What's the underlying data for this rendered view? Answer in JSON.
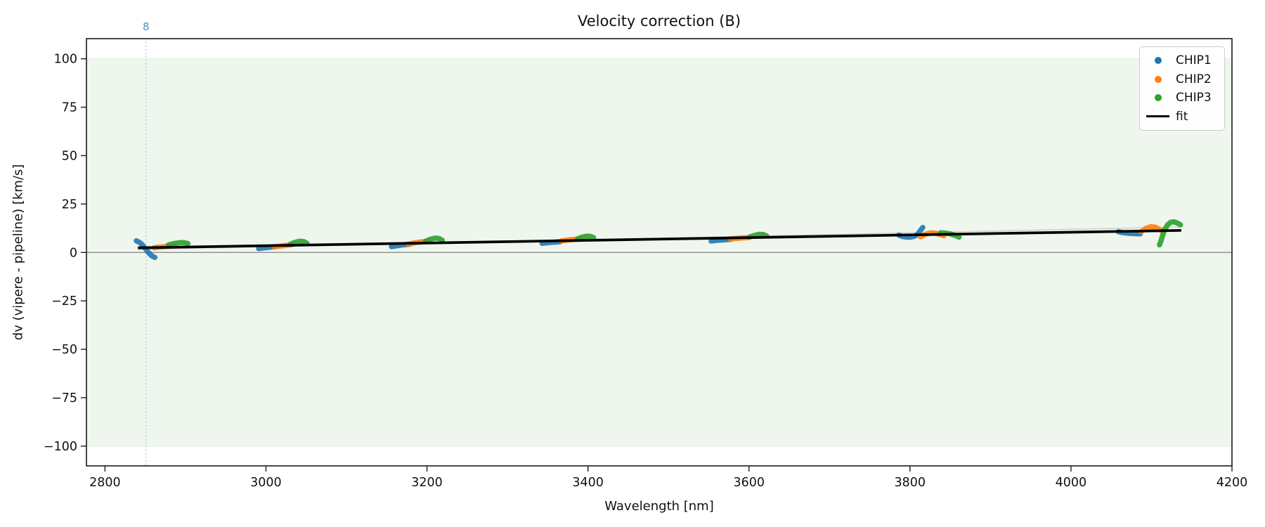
{
  "chart_data": {
    "type": "scatter",
    "title": "Velocity correction (B)",
    "xlabel": "Wavelength [nm]",
    "ylabel": "dv (vipere - pipeline) [km/s]",
    "xlim": [
      2777,
      4200
    ],
    "ylim": [
      -110.2,
      110.4
    ],
    "x_ticks": [
      2800,
      3000,
      3200,
      3400,
      3600,
      3800,
      4000,
      4200
    ],
    "y_ticks": [
      -100,
      -75,
      -50,
      -25,
      0,
      25,
      50,
      75,
      100
    ],
    "grid": false,
    "band": {
      "ymin": -100,
      "ymax": 100,
      "fill": "#eff6ee",
      "edge": "#e0eee0"
    },
    "zero_line": {
      "y": 0,
      "color": "#7f7f7f"
    },
    "vline": {
      "x": 2851,
      "label": "8",
      "color": "#a9cde4",
      "label_color": "#4a90c2"
    },
    "legend": {
      "position": "upper right",
      "entries": [
        {
          "label": "CHIP1",
          "marker": "dot",
          "color": "#1f77b4"
        },
        {
          "label": "CHIP2",
          "marker": "dot",
          "color": "#ff7f0e"
        },
        {
          "label": "CHIP3",
          "marker": "dot",
          "color": "#2ca02c"
        },
        {
          "label": "fit",
          "marker": "line",
          "color": "#000000"
        }
      ]
    },
    "series": [
      {
        "name": "CHIP1",
        "color": "#1f77b4",
        "segments": [
          [
            [
              2839,
              6.0
            ],
            [
              2842,
              5.4
            ],
            [
              2845,
              4.5
            ],
            [
              2848,
              3.2
            ],
            [
              2851,
              1.6
            ],
            [
              2854,
              0.0
            ],
            [
              2857,
              -1.3
            ],
            [
              2860,
              -2.2
            ],
            [
              2862,
              -2.6
            ]
          ],
          [
            [
              2991,
              2.0
            ],
            [
              2996,
              2.3
            ],
            [
              3002,
              2.6
            ],
            [
              3007,
              2.8
            ],
            [
              3011,
              3.0
            ]
          ],
          [
            [
              3156,
              3.0
            ],
            [
              3162,
              3.4
            ],
            [
              3168,
              3.8
            ],
            [
              3174,
              4.1
            ],
            [
              3179,
              4.3
            ]
          ],
          [
            [
              3343,
              4.7
            ],
            [
              3349,
              5.0
            ],
            [
              3355,
              5.2
            ],
            [
              3361,
              5.4
            ],
            [
              3366,
              5.6
            ]
          ],
          [
            [
              3553,
              5.9
            ],
            [
              3559,
              6.2
            ],
            [
              3565,
              6.4
            ],
            [
              3572,
              6.6
            ],
            [
              3578,
              6.8
            ]
          ],
          [
            [
              3786,
              9.0
            ],
            [
              3791,
              8.2
            ],
            [
              3796,
              7.9
            ],
            [
              3801,
              7.9
            ],
            [
              3806,
              8.4
            ],
            [
              3810,
              9.6
            ],
            [
              3813,
              11.3
            ],
            [
              3816,
              12.9
            ]
          ],
          [
            [
              4059,
              10.7
            ],
            [
              4065,
              10.2
            ],
            [
              4072,
              9.9
            ],
            [
              4079,
              9.7
            ],
            [
              4086,
              9.6
            ]
          ]
        ]
      },
      {
        "name": "CHIP2",
        "color": "#ff7f0e",
        "segments": [
          [
            [
              2861,
              2.4
            ],
            [
              2866,
              2.7
            ],
            [
              2871,
              2.9
            ],
            [
              2876,
              3.1
            ],
            [
              2881,
              3.3
            ],
            [
              2886,
              3.5
            ]
          ],
          [
            [
              3010,
              2.9
            ],
            [
              3016,
              3.2
            ],
            [
              3022,
              3.5
            ],
            [
              3028,
              3.8
            ],
            [
              3033,
              4.1
            ]
          ],
          [
            [
              3177,
              4.3
            ],
            [
              3183,
              4.8
            ],
            [
              3189,
              5.2
            ],
            [
              3195,
              5.5
            ],
            [
              3201,
              5.7
            ]
          ],
          [
            [
              3367,
              5.9
            ],
            [
              3373,
              6.3
            ],
            [
              3379,
              6.6
            ],
            [
              3385,
              6.8
            ],
            [
              3390,
              6.9
            ]
          ],
          [
            [
              3577,
              7.0
            ],
            [
              3583,
              7.2
            ],
            [
              3589,
              7.4
            ],
            [
              3595,
              7.6
            ],
            [
              3600,
              7.7
            ]
          ],
          [
            [
              3813,
              8.1
            ],
            [
              3819,
              9.3
            ],
            [
              3825,
              10.1
            ],
            [
              3831,
              10.0
            ],
            [
              3837,
              9.3
            ],
            [
              3842,
              8.6
            ]
          ],
          [
            [
              4087,
              10.7
            ],
            [
              4093,
              12.4
            ],
            [
              4099,
              13.3
            ],
            [
              4105,
              13.0
            ],
            [
              4110,
              11.9
            ],
            [
              4114,
              10.9
            ]
          ]
        ]
      },
      {
        "name": "CHIP3",
        "color": "#2ca02c",
        "segments": [
          [
            [
              2879,
              3.9
            ],
            [
              2884,
              4.4
            ],
            [
              2889,
              4.8
            ],
            [
              2894,
              5.1
            ],
            [
              2899,
              5.0
            ],
            [
              2903,
              4.6
            ]
          ],
          [
            [
              3030,
              4.2
            ],
            [
              3036,
              5.2
            ],
            [
              3042,
              5.8
            ],
            [
              3047,
              5.6
            ],
            [
              3051,
              4.7
            ]
          ],
          [
            [
              3198,
              5.7
            ],
            [
              3204,
              6.8
            ],
            [
              3210,
              7.4
            ],
            [
              3215,
              7.2
            ],
            [
              3219,
              6.3
            ]
          ],
          [
            [
              3387,
              7.0
            ],
            [
              3392,
              7.8
            ],
            [
              3398,
              8.4
            ],
            [
              3403,
              8.3
            ],
            [
              3407,
              7.7
            ]
          ],
          [
            [
              3601,
              8.0
            ],
            [
              3607,
              8.8
            ],
            [
              3613,
              9.4
            ],
            [
              3618,
              9.2
            ],
            [
              3622,
              8.5
            ]
          ],
          [
            [
              3838,
              10.2
            ],
            [
              3844,
              10.0
            ],
            [
              3850,
              9.6
            ],
            [
              3856,
              8.8
            ],
            [
              3861,
              7.9
            ]
          ],
          [
            [
              4110,
              3.9
            ],
            [
              4112,
              6.2
            ],
            [
              4114,
              9.0
            ],
            [
              4117,
              12.2
            ],
            [
              4120,
              14.3
            ],
            [
              4124,
              15.6
            ],
            [
              4128,
              15.8
            ],
            [
              4132,
              15.2
            ],
            [
              4136,
              14.3
            ]
          ]
        ]
      }
    ],
    "fit": {
      "name": "fit",
      "color": "#000000",
      "points": [
        [
          2841,
          2.4
        ],
        [
          4137,
          11.4
        ]
      ]
    },
    "fit_shadow": {
      "color": "#c2c2c2",
      "points": [
        [
          2841,
          1.5
        ],
        [
          4137,
          13.2
        ]
      ]
    }
  }
}
